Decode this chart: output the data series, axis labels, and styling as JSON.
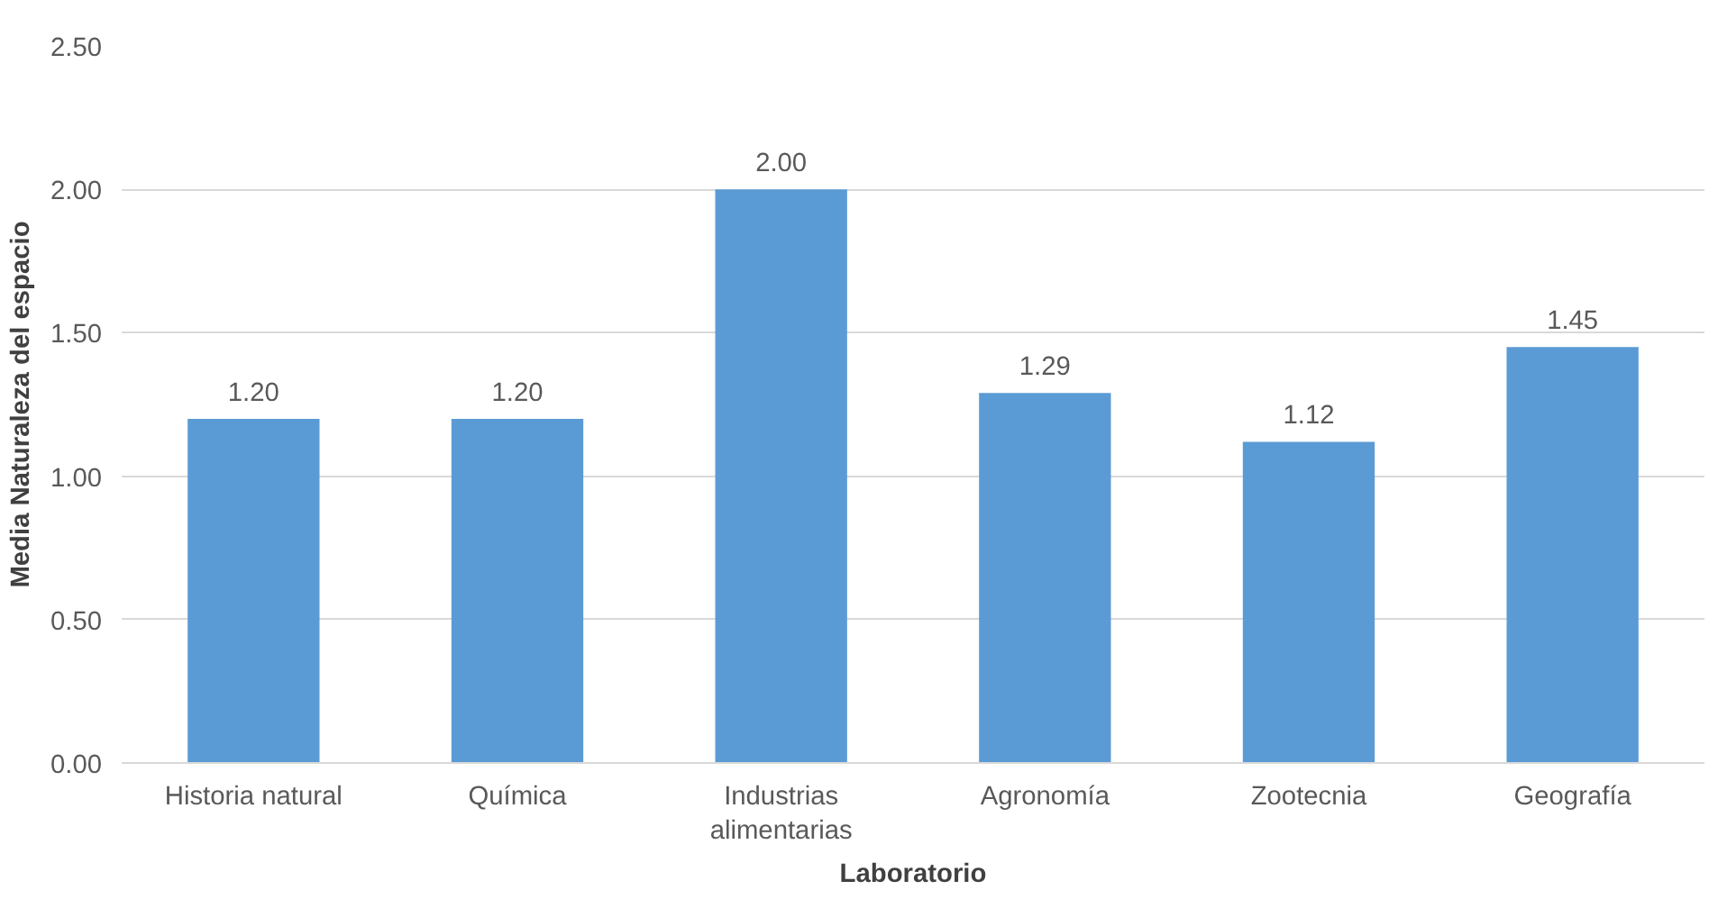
{
  "chart_data": {
    "type": "bar",
    "xlabel": "Laboratorio",
    "ylabel": "Media Naturaleza del espacio",
    "categories": [
      "Historia natural",
      "Química",
      "Industrias alimentarias",
      "Agronomía",
      "Zootecnia",
      "Geografía"
    ],
    "values": [
      1.2,
      1.2,
      2.0,
      1.29,
      1.12,
      1.45
    ],
    "color": "#5b9bd5",
    "ylim": [
      0,
      2.5
    ],
    "yticks": [
      {
        "value": 0,
        "label": "0.00"
      },
      {
        "value": 0.5,
        "label": "0.50"
      },
      {
        "value": 1,
        "label": "1.00"
      },
      {
        "value": 1.5,
        "label": "1.50"
      },
      {
        "value": 2,
        "label": "2.00"
      },
      {
        "value": 2.5,
        "label": "2.50"
      }
    ],
    "value_labels": [
      "1.20",
      "1.20",
      "2.00",
      "1.29",
      "1.12",
      "1.45"
    ],
    "grid": "y"
  }
}
